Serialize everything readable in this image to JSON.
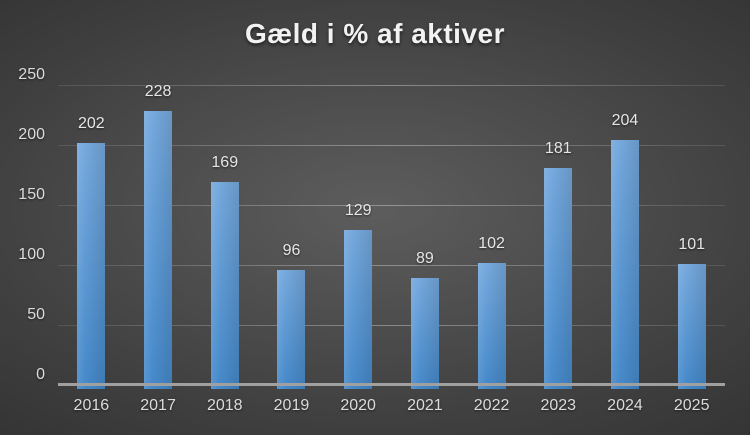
{
  "title": "Gæld i % af aktiver",
  "chart_data": {
    "type": "bar",
    "title": "Gæld i % af aktiver",
    "categories": [
      "2016",
      "2017",
      "2018",
      "2019",
      "2020",
      "2021",
      "2022",
      "2023",
      "2024",
      "2025"
    ],
    "values": [
      202,
      228,
      169,
      96,
      129,
      89,
      102,
      181,
      204,
      101
    ],
    "xlabel": "",
    "ylabel": "",
    "ylim": [
      0,
      250
    ],
    "yticks": [
      0,
      50,
      100,
      150,
      200,
      250
    ],
    "grid": true,
    "legend": false,
    "data_labels": true
  },
  "colors": {
    "bar_top": "#76a9dd",
    "bar_bottom": "#4589ca",
    "bg_center": "#5d5d5d",
    "bg_edge": "#242424",
    "axis_line": "#a0a0a0",
    "tick_label": "#dcdcdc",
    "data_label": "#e6e6e6",
    "title_color": "#f2f2f2"
  }
}
